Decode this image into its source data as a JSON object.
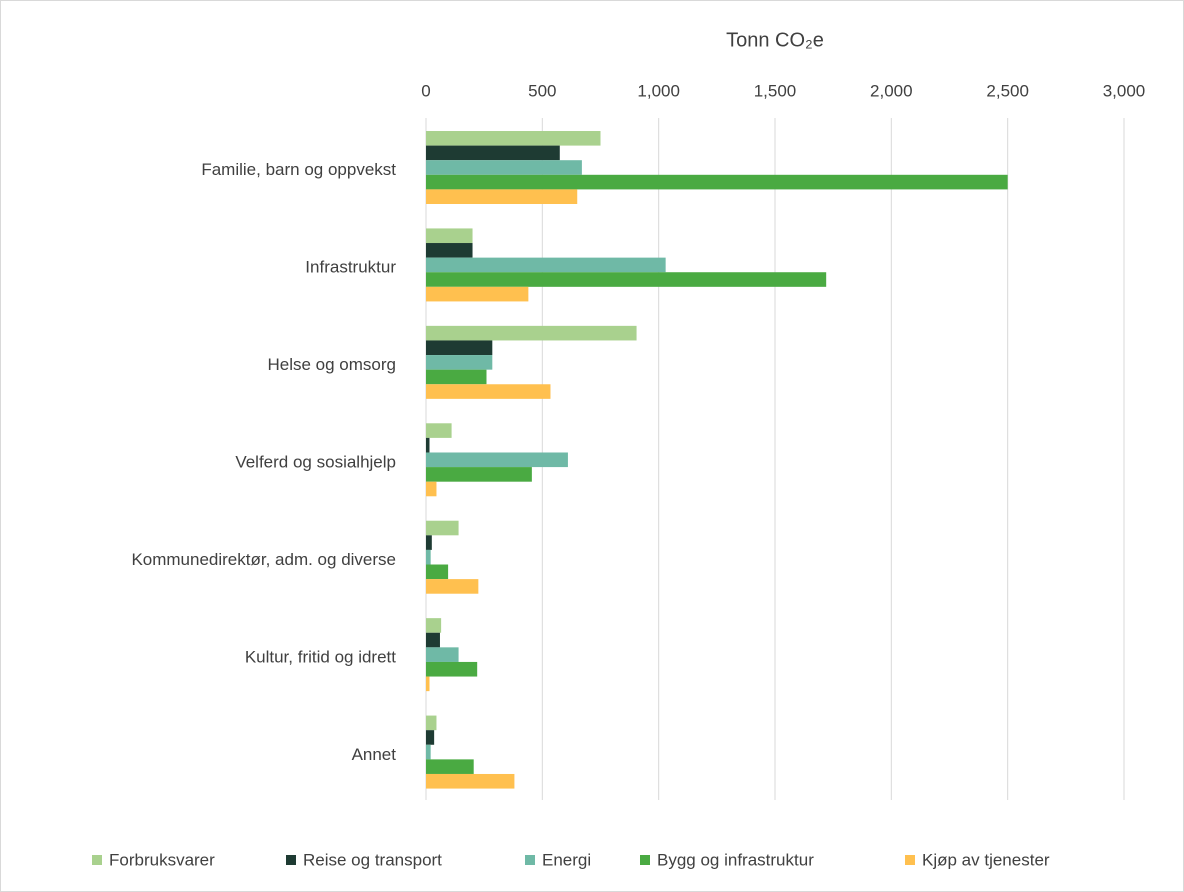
{
  "chart_data": {
    "type": "hbar",
    "x_label": "Tonn CO₂e",
    "categories": [
      "Familie, barn og oppvekst",
      "Infrastruktur",
      "Helse og omsorg",
      "Velferd og sosialhjelp",
      "Kommunedirektør, adm. og diverse",
      "Kultur, fritid og idrett",
      "Annet"
    ],
    "series": [
      {
        "name": "Forbruksvarer",
        "color": "#a9d18e",
        "values": [
          750,
          200,
          905,
          110,
          140,
          65,
          45
        ]
      },
      {
        "name": "Reise og transport",
        "color": "#1e3b33",
        "values": [
          575,
          200,
          285,
          15,
          25,
          60,
          35
        ]
      },
      {
        "name": "Energi",
        "color": "#6fb9a6",
        "values": [
          670,
          1030,
          285,
          610,
          20,
          140,
          20
        ]
      },
      {
        "name": "Bygg og infrastruktur",
        "color": "#4aaa42",
        "values": [
          2500,
          1720,
          260,
          455,
          95,
          220,
          205
        ]
      },
      {
        "name": "Kjøp av tjenester",
        "color": "#ffc04f",
        "values": [
          650,
          440,
          535,
          45,
          225,
          15,
          380
        ]
      }
    ],
    "xlim": [
      0,
      3000
    ],
    "xticks": [
      0,
      500,
      {
        "value": 1000,
        "label": "1,000"
      },
      {
        "value": 1500,
        "label": "1,500"
      },
      {
        "value": 2000,
        "label": "2,000"
      },
      {
        "value": 2500,
        "label": "2,500"
      },
      {
        "value": 3000,
        "label": "3,000"
      }
    ],
    "grid": true,
    "legend": "bottom"
  }
}
